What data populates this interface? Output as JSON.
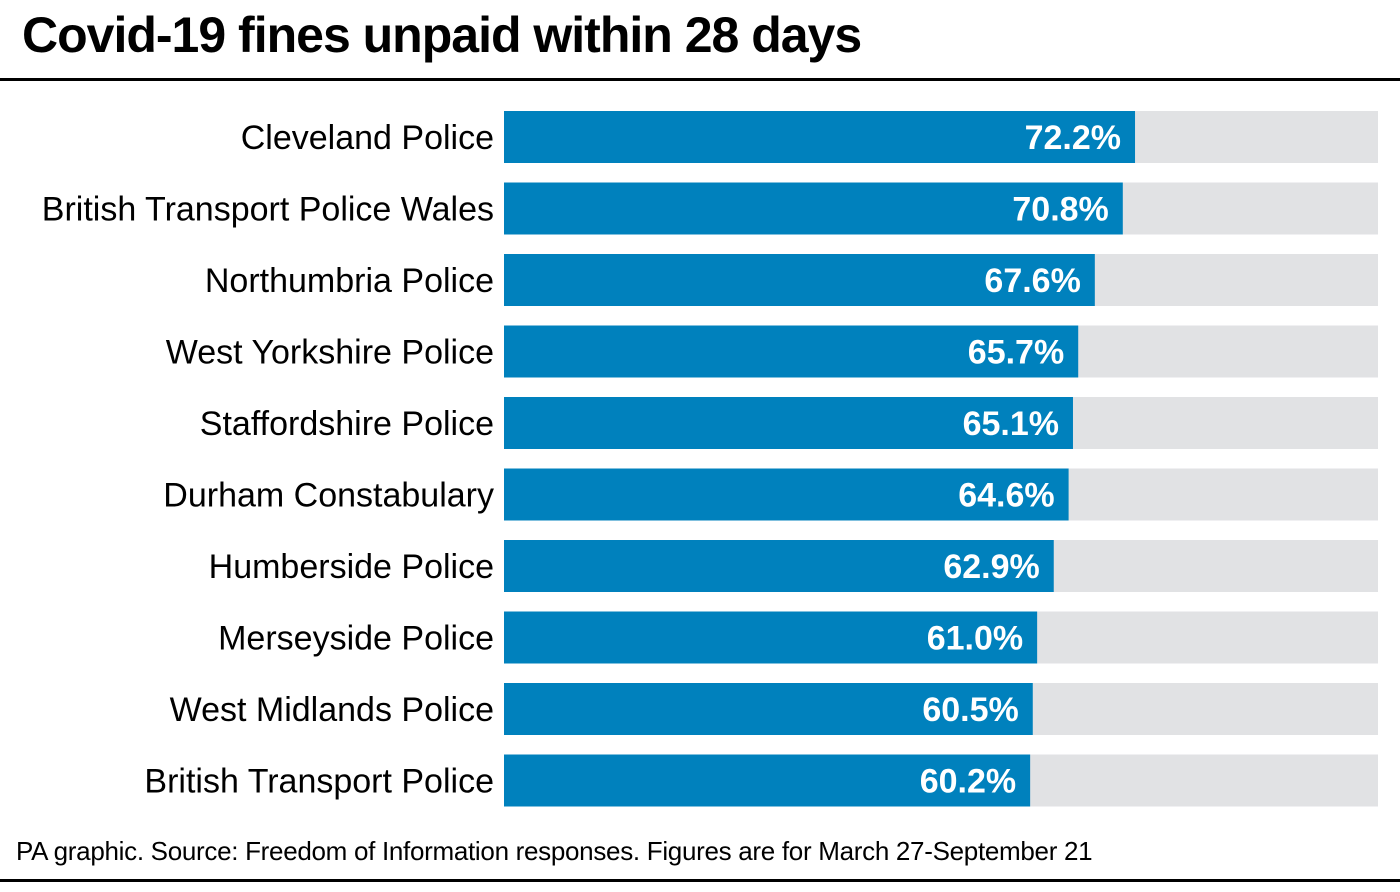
{
  "title": "Covid-19 fines unpaid within 28 days",
  "footer": "PA graphic. Source: Freedom of Information responses. Figures are for March 27-September 21",
  "chart_data": {
    "type": "bar",
    "orientation": "horizontal",
    "categories": [
      "Cleveland Police",
      "British Transport Police Wales",
      "Northumbria Police",
      "West Yorkshire Police",
      "Staffordshire Police",
      "Durham Constabulary",
      "Humberside Police",
      "Merseyside Police",
      "West Midlands Police",
      "British Transport Police"
    ],
    "values": [
      72.2,
      70.8,
      67.6,
      65.7,
      65.1,
      64.6,
      62.9,
      61.0,
      60.5,
      60.2
    ],
    "value_labels": [
      "72.2%",
      "70.8%",
      "67.6%",
      "65.7%",
      "65.1%",
      "64.6%",
      "62.9%",
      "61.0%",
      "60.5%",
      "60.2%"
    ],
    "xlim": [
      0,
      100
    ],
    "grid": false,
    "legend": "none",
    "bar_color": "#0081BD",
    "track_color": "#E1E2E4",
    "label_color": "#FFFFFF"
  }
}
